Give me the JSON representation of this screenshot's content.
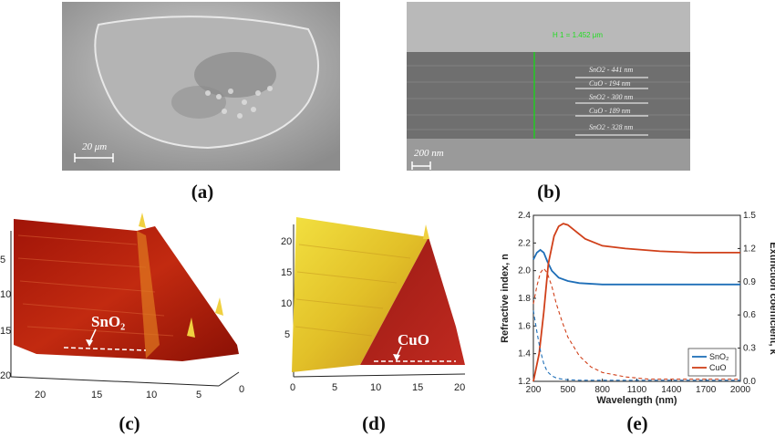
{
  "panels": {
    "a": {
      "caption": "(a)",
      "scale": "20 μm"
    },
    "b": {
      "caption": "(b)",
      "height_label": "H 1 = 1.452 μm",
      "scale": "200 nm",
      "layers": [
        "SnO2 - 441 nm",
        "CuO - 194 nm",
        "SnO2 - 300 nm",
        "CuO - 189 nm",
        "SnO2 - 328 nm"
      ]
    },
    "c": {
      "caption": "(c)",
      "material": "SnO₂",
      "y_ticks": [
        "5",
        "10",
        "15",
        "20"
      ],
      "x_ticks": [
        "20",
        "15",
        "10",
        "5",
        "0"
      ]
    },
    "d": {
      "caption": "(d)",
      "material": "CuO",
      "y_ticks": [
        "20",
        "15",
        "10",
        "5"
      ],
      "x_ticks": [
        "0",
        "5",
        "10",
        "15",
        "20"
      ]
    },
    "e": {
      "caption": "(e)"
    }
  },
  "colors": {
    "sno2": "#1f6fb8",
    "cuo": "#d0401a"
  },
  "chart_data": {
    "type": "line",
    "xlabel": "Wavelength (nm)",
    "ylabel": "Refractive index, n",
    "y2label": "Extinction coefficient, k",
    "xlim": [
      200,
      2000
    ],
    "ylim": [
      1.2,
      2.4
    ],
    "y2lim": [
      0,
      1.5
    ],
    "x_ticks": [
      200,
      500,
      800,
      1100,
      1400,
      1700,
      2000
    ],
    "y_ticks": [
      "1.2",
      "1.4",
      "1.6",
      "1.8",
      "2.0",
      "2.2",
      "2.4"
    ],
    "y2_ticks": [
      "0.0",
      "0.3",
      "0.6",
      "0.9",
      "1.2",
      "1.5"
    ],
    "legend_position": "bottom-right",
    "series": [
      {
        "name": "SnO₂",
        "kind": "n",
        "axis": "left",
        "style": "solid",
        "x": [
          200,
          230,
          260,
          290,
          320,
          360,
          420,
          500,
          600,
          800,
          1000,
          1200,
          1500,
          1800,
          2000
        ],
        "y": [
          2.08,
          2.13,
          2.15,
          2.13,
          2.07,
          2.0,
          1.95,
          1.925,
          1.91,
          1.9,
          1.9,
          1.9,
          1.9,
          1.9,
          1.9
        ]
      },
      {
        "name": "CuO",
        "kind": "n",
        "axis": "left",
        "style": "solid",
        "x": [
          200,
          250,
          290,
          330,
          380,
          420,
          460,
          500,
          560,
          650,
          800,
          1000,
          1300,
          1600,
          2000
        ],
        "y": [
          1.2,
          1.4,
          1.7,
          2.05,
          2.25,
          2.32,
          2.34,
          2.33,
          2.29,
          2.23,
          2.18,
          2.16,
          2.14,
          2.13,
          2.13
        ]
      },
      {
        "name": "SnO₂",
        "kind": "k",
        "axis": "right",
        "style": "dashed",
        "x": [
          200,
          230,
          260,
          290,
          320,
          360,
          400,
          450,
          500,
          600,
          800,
          1200,
          2000
        ],
        "y": [
          0.64,
          0.45,
          0.28,
          0.16,
          0.09,
          0.05,
          0.03,
          0.02,
          0.015,
          0.01,
          0.01,
          0.01,
          0.01
        ]
      },
      {
        "name": "CuO",
        "kind": "k",
        "axis": "right",
        "style": "dashed",
        "x": [
          200,
          230,
          260,
          290,
          320,
          360,
          400,
          450,
          500,
          600,
          700,
          800,
          1000,
          1200,
          1500,
          2000
        ],
        "y": [
          0.7,
          0.86,
          0.98,
          1.02,
          0.98,
          0.86,
          0.7,
          0.54,
          0.4,
          0.23,
          0.13,
          0.08,
          0.04,
          0.02,
          0.02,
          0.02
        ]
      }
    ],
    "legend": [
      "SnO₂",
      "CuO"
    ]
  }
}
